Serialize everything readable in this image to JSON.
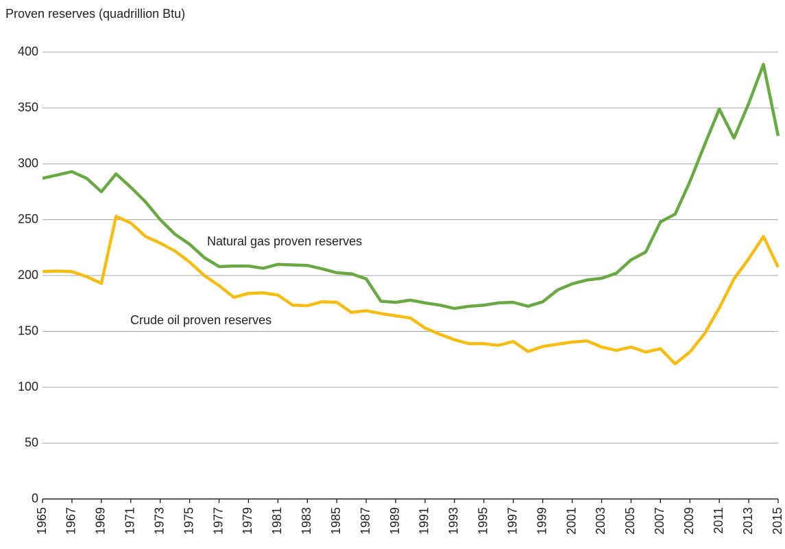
{
  "chart_data": {
    "type": "line",
    "y_axis_label": "Proven reserves (quadrillion Btu)",
    "x": [
      1965,
      1966,
      1967,
      1968,
      1969,
      1970,
      1971,
      1972,
      1973,
      1974,
      1975,
      1976,
      1977,
      1978,
      1979,
      1980,
      1981,
      1982,
      1983,
      1984,
      1985,
      1986,
      1987,
      1988,
      1989,
      1990,
      1991,
      1992,
      1993,
      1994,
      1995,
      1996,
      1997,
      1998,
      1999,
      2000,
      2001,
      2002,
      2003,
      2004,
      2005,
      2006,
      2007,
      2008,
      2009,
      2010,
      2011,
      2012,
      2013,
      2014,
      2015
    ],
    "series": [
      {
        "name": "Natural gas proven reserves",
        "color": "#6aa843",
        "values": [
          287,
          290,
          293,
          287,
          275,
          291,
          279,
          266,
          250,
          237,
          228,
          216,
          208,
          208.5,
          208.5,
          206.5,
          210,
          209.5,
          209,
          206,
          202.5,
          201.5,
          197,
          177,
          176,
          178,
          175.5,
          173.5,
          170.5,
          172.5,
          173.5,
          175.5,
          176,
          172.5,
          176.5,
          187,
          192.5,
          196,
          197.5,
          202,
          214,
          221,
          248,
          255,
          284,
          317,
          349,
          323,
          354,
          389,
          325
        ]
      },
      {
        "name": "Crude oil proven reserves",
        "color": "#f7bc12",
        "values": [
          203.5,
          204,
          203.5,
          199,
          193,
          253,
          247,
          235,
          229,
          222,
          212,
          200,
          191,
          180.5,
          184,
          184.5,
          182.5,
          173.5,
          173,
          176.5,
          176,
          167,
          168.5,
          166,
          164,
          162,
          153,
          147.5,
          142.5,
          139,
          139,
          137.5,
          141,
          132,
          136.5,
          138.5,
          140.5,
          141.5,
          136,
          133,
          136,
          131.5,
          134.5,
          121,
          131.5,
          148,
          171,
          197,
          215,
          235,
          207.5
        ]
      }
    ],
    "xlim": [
      1965,
      2015
    ],
    "xticks": [
      1965,
      1967,
      1969,
      1971,
      1973,
      1975,
      1977,
      1979,
      1981,
      1983,
      1985,
      1987,
      1989,
      1991,
      1993,
      1995,
      1997,
      1999,
      2001,
      2003,
      2005,
      2007,
      2009,
      2011,
      2013,
      2015
    ],
    "ylim": [
      0,
      400
    ],
    "yticks": [
      0,
      50,
      100,
      150,
      200,
      250,
      300,
      350,
      400
    ],
    "grid": true
  }
}
